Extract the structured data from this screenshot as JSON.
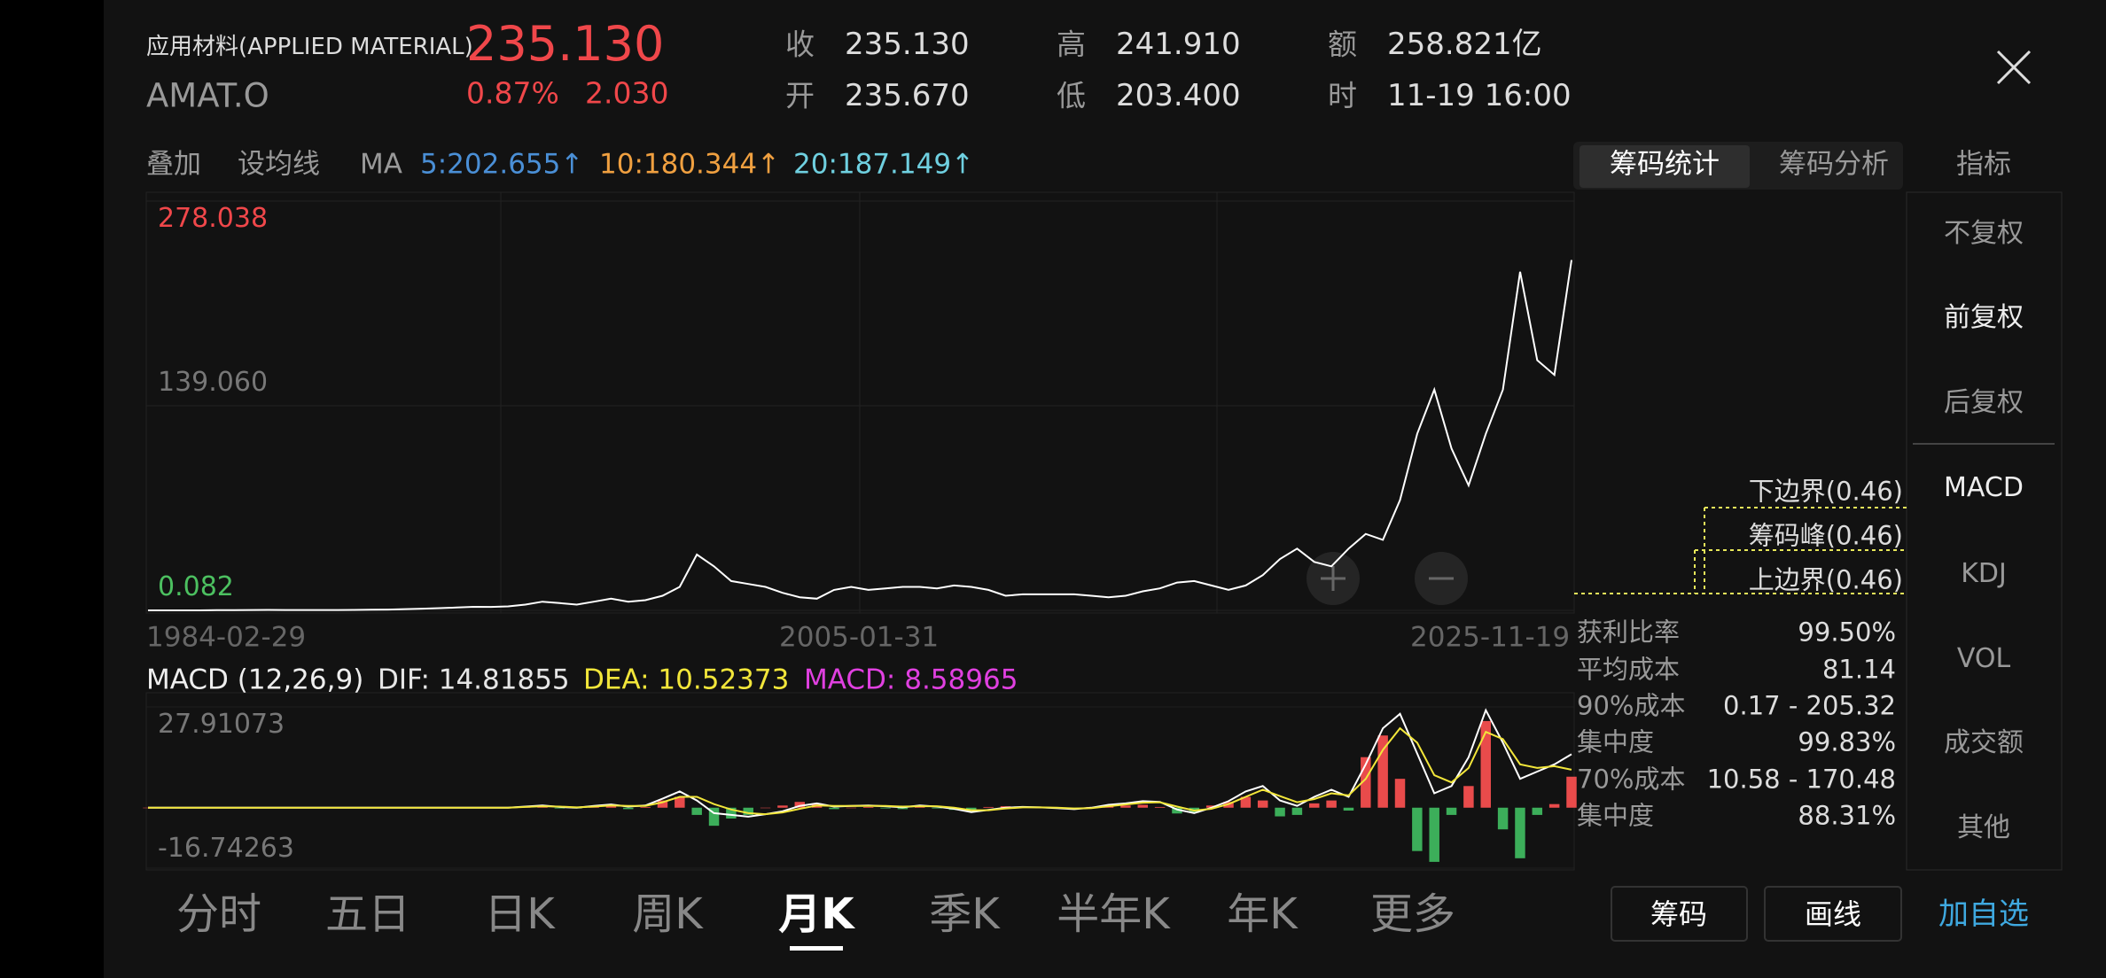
{
  "header": {
    "name": "应用材料(APPLIED MATERIAL)",
    "code": "AMAT.O",
    "price": "235.130",
    "change_pct": "0.87%",
    "change": "2.030",
    "stats": [
      {
        "label": "收",
        "value": "235.130"
      },
      {
        "label": "开",
        "value": "235.670"
      },
      {
        "label": "高",
        "value": "241.910"
      },
      {
        "label": "低",
        "value": "203.400"
      },
      {
        "label": "额",
        "value": "258.821亿"
      },
      {
        "label": "时",
        "value": "11-19 16:00"
      }
    ]
  },
  "toolbar": {
    "overlay": "叠加",
    "set_ma": "设均线",
    "ma": "MA",
    "ma_values": [
      {
        "text": "5:202.655↑",
        "color": "#4a8fd6"
      },
      {
        "text": "10:180.344↑",
        "color": "#f0a040"
      },
      {
        "text": "20:187.149↑",
        "color": "#6fd0e0"
      }
    ]
  },
  "tabs": [
    "筹码统计",
    "筹码分析",
    "指标"
  ],
  "tabs_active": 0,
  "price_chart": {
    "type": "line",
    "color": "#ffffff",
    "ylim": [
      0.082,
      278.038
    ],
    "yticks": [
      0.082,
      {
        "value": 139.06,
        "label": "139.060"
      },
      278.038
    ],
    "xlabels": [
      "1984-02-29",
      "2005-01-31",
      "2025-11-19"
    ],
    "values": [
      0.1,
      0.1,
      0.1,
      0.1,
      0.2,
      0.2,
      0.3,
      0.4,
      0.3,
      0.3,
      0.3,
      0.3,
      0.4,
      0.5,
      0.6,
      0.9,
      1.2,
      1.6,
      2.0,
      2.5,
      2.4,
      2.8,
      4,
      6,
      5,
      4,
      6,
      8,
      6,
      7,
      10,
      16,
      38,
      30,
      20,
      18,
      16,
      12,
      9,
      8,
      14,
      16,
      14,
      15,
      16,
      16,
      15,
      17,
      16,
      14,
      10,
      11,
      11,
      11,
      11,
      10,
      9,
      10,
      13,
      15,
      19,
      20,
      17,
      14,
      17,
      24,
      35,
      42,
      33,
      30,
      42,
      52,
      48,
      75,
      120,
      150,
      110,
      85,
      120,
      150,
      230,
      170,
      160,
      238
    ]
  },
  "macd_chart": {
    "title": "MACD (12,26,9)",
    "legend": [
      {
        "text": "DIF: 14.81855",
        "color": "#e6e6e6"
      },
      {
        "text": "DEA: 10.52373",
        "color": "#f2e63a"
      },
      {
        "text": "MACD: 8.58965",
        "color": "#e040e0"
      }
    ],
    "ylim": [
      -16.74263,
      27.91073
    ],
    "yticks": [
      -16.74263,
      27.91073
    ],
    "dif_color": "#ffffff",
    "dea_color": "#f2e63a",
    "up_color": "#e94b4b",
    "down_color": "#3cae5a",
    "dif": [
      0,
      0,
      0,
      0,
      0,
      0,
      0,
      0,
      0,
      0,
      0,
      0,
      0,
      0,
      0,
      0,
      0,
      0,
      0,
      0,
      0,
      0,
      0.3,
      0.6,
      0.2,
      0,
      0.5,
      0.9,
      0.3,
      0.6,
      2.5,
      4.5,
      2,
      -1.5,
      -2,
      -2.5,
      -1.8,
      -1,
      0.5,
      1.2,
      0.3,
      0.5,
      0.6,
      0.4,
      0.1,
      0.6,
      0.3,
      -0.3,
      -1.2,
      -0.6,
      0,
      0.2,
      0.1,
      -0.1,
      -0.4,
      0,
      0.8,
      1.2,
      1.8,
      1.6,
      -0.5,
      -1.5,
      0,
      1.8,
      4.5,
      6,
      2,
      0.5,
      3,
      5,
      3,
      12,
      22,
      26,
      15,
      4,
      6,
      14,
      27,
      18,
      8,
      10,
      12,
      14.81855
    ],
    "dea": [
      0,
      0,
      0,
      0,
      0,
      0,
      0,
      0,
      0,
      0,
      0,
      0,
      0,
      0,
      0,
      0,
      0,
      0,
      0,
      0,
      0,
      0,
      0.2,
      0.4,
      0.3,
      0.1,
      0.3,
      0.6,
      0.5,
      0.5,
      1.5,
      3,
      3,
      1,
      -0.5,
      -1.5,
      -1.8,
      -1.3,
      -0.3,
      0.6,
      0.5,
      0.5,
      0.5,
      0.5,
      0.3,
      0.4,
      0.4,
      0,
      -0.7,
      -0.7,
      -0.2,
      0.1,
      0.1,
      0,
      -0.2,
      -0.1,
      0.4,
      0.9,
      1.4,
      1.5,
      0.3,
      -0.8,
      -0.3,
      1,
      3,
      5,
      3.2,
      1.5,
      2.4,
      4,
      3.4,
      8,
      16,
      22,
      18,
      9,
      7,
      11,
      21,
      19,
      12,
      11,
      11.5,
      10.52373
    ],
    "hist": [
      0,
      0,
      0,
      0,
      0,
      0,
      0,
      0,
      0,
      0,
      0,
      0,
      0,
      0,
      0,
      0,
      0,
      0,
      0,
      0,
      0,
      0,
      0.2,
      0.4,
      -0.2,
      -0.2,
      0.4,
      0.6,
      -0.4,
      0.2,
      2,
      3,
      -2,
      -5,
      -3,
      -2,
      0,
      0.6,
      1.6,
      1.2,
      -0.4,
      0,
      0.2,
      -0.2,
      -0.4,
      0.4,
      -0.2,
      -0.6,
      -1,
      0.2,
      0.4,
      0.2,
      0,
      -0.2,
      -0.4,
      0.2,
      0.8,
      0.6,
      0.8,
      0.2,
      -1.6,
      -1.4,
      0.6,
      1.6,
      3,
      2,
      -2.4,
      -2,
      1.2,
      2,
      -0.8,
      14,
      20,
      8,
      -12,
      -15,
      -2,
      6,
      24,
      -6,
      -14,
      -2,
      1,
      8.58965
    ]
  },
  "chips": {
    "bounds": [
      "下边界(0.46)",
      "筹码峰(0.46)",
      "上边界(0.46)"
    ],
    "stats": [
      {
        "label": "获利比率",
        "value": "99.50%"
      },
      {
        "label": "平均成本",
        "value": "81.14"
      },
      {
        "label": "90%成本",
        "value": "0.17 - 205.32"
      },
      {
        "label": "集中度",
        "value": "99.83%"
      },
      {
        "label": "70%成本",
        "value": "10.58 - 170.48"
      },
      {
        "label": "集中度",
        "value": "88.31%"
      }
    ]
  },
  "right_menu": [
    "不复权",
    "前复权",
    "后复权",
    "MACD",
    "KDJ",
    "VOL",
    "成交额",
    "其他"
  ],
  "right_menu_active": 1,
  "bottom_tabs": [
    "分时",
    "五日",
    "日K",
    "周K",
    "月K",
    "季K",
    "半年K",
    "年K",
    "更多"
  ],
  "bottom_active": 4,
  "buttons": [
    "筹码",
    "画线"
  ],
  "add_watch": "加自选"
}
